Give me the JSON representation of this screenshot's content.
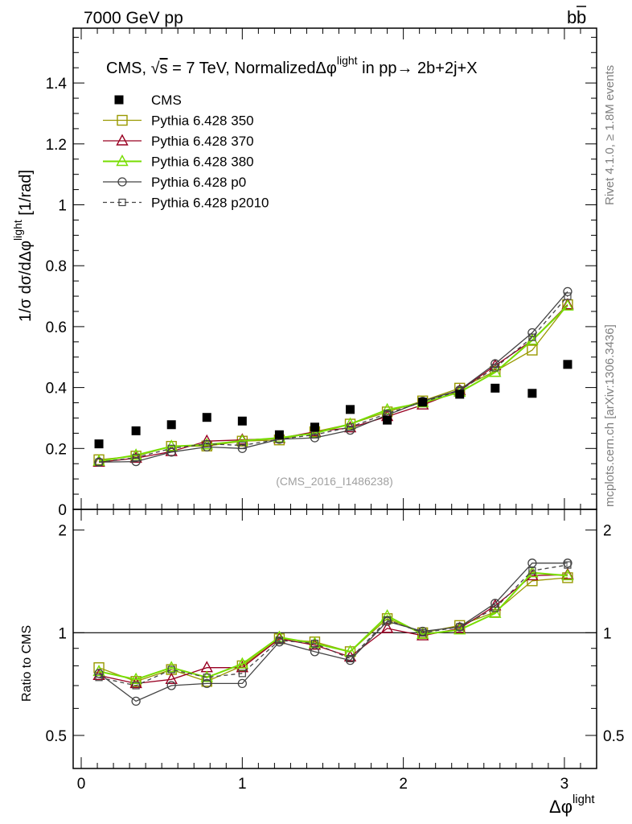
{
  "header": {
    "left": "7000 GeV pp",
    "right_b": "b",
    "right_bbar": "b"
  },
  "side_labels": {
    "rivet": "Rivet 4.1.0, ≥ 1.8M events",
    "mcplots": "mcplots.cern.ch [arXiv:1306.3436]"
  },
  "chart_data": [
    {
      "type": "scatter",
      "panel": "main",
      "title_parts": {
        "pre": "CMS, ",
        "sqrt": "√",
        "s": "s",
        "post": " = 7 TeV, Normalized",
        "dphi": "Δφ",
        "sup": "light",
        "tail": " in pp→  2b+2j+X"
      },
      "ylabel": {
        "pre": "1/σ dσ/dΔφ",
        "sup": "light",
        "post": " [1/rad]"
      },
      "watermark": "(CMS_2016_I1486238)",
      "xlim": [
        -0.05,
        3.2
      ],
      "ylim": [
        0,
        1.58
      ],
      "yticks": [
        0,
        0.2,
        0.4,
        0.6,
        0.8,
        1,
        1.2,
        1.4
      ],
      "yticklabels": [
        "0",
        "0.2",
        "0.4",
        "0.6",
        "0.8",
        "1",
        "1.2",
        "1.4"
      ],
      "x": [
        0.11,
        0.34,
        0.56,
        0.78,
        1.0,
        1.23,
        1.45,
        1.67,
        1.9,
        2.12,
        2.35,
        2.57,
        2.8,
        3.02
      ],
      "data": {
        "name": "CMS",
        "values": [
          0.215,
          0.258,
          0.278,
          0.302,
          0.29,
          0.245,
          0.27,
          0.328,
          0.293,
          0.352,
          0.378,
          0.398,
          0.381,
          0.476
        ]
      },
      "series": [
        {
          "name": "Pythia 6.428 350",
          "color": "#999900",
          "marker": "square-open",
          "dash": false,
          "values": [
            0.163,
            0.175,
            0.207,
            0.208,
            0.224,
            0.228,
            0.255,
            0.28,
            0.32,
            0.356,
            0.398,
            0.453,
            0.523,
            0.672
          ]
        },
        {
          "name": "Pythia 6.428 370",
          "color": "#990022",
          "marker": "triangle-open",
          "dash": false,
          "values": [
            0.155,
            0.168,
            0.19,
            0.224,
            0.228,
            0.233,
            0.255,
            0.268,
            0.305,
            0.343,
            0.39,
            0.472,
            0.555,
            0.672
          ]
        },
        {
          "name": "Pythia 6.428 380",
          "color": "#77dd00",
          "marker": "triangle-open",
          "dash": false,
          "values": [
            0.158,
            0.178,
            0.207,
            0.212,
            0.225,
            0.235,
            0.25,
            0.28,
            0.327,
            0.35,
            0.385,
            0.45,
            0.555,
            0.668
          ]
        },
        {
          "name": "Pythia 6.428 p0",
          "color": "#444444",
          "marker": "circle-open",
          "dash": false,
          "values": [
            0.155,
            0.157,
            0.188,
            0.205,
            0.2,
            0.23,
            0.235,
            0.26,
            0.31,
            0.355,
            0.392,
            0.478,
            0.58,
            0.715
          ]
        },
        {
          "name": "Pythia 6.428 p2010",
          "color": "#444444",
          "marker": "square-open-small",
          "dash": true,
          "values": [
            0.155,
            0.17,
            0.2,
            0.215,
            0.21,
            0.23,
            0.245,
            0.27,
            0.315,
            0.352,
            0.39,
            0.465,
            0.565,
            0.7
          ]
        }
      ]
    },
    {
      "type": "line",
      "panel": "ratio",
      "ylabel": "Ratio to CMS",
      "xlabel_pre": "Δφ",
      "xlabel_sup": "light",
      "xlim": [
        -0.05,
        3.2
      ],
      "ylim": [
        0.4,
        2.3
      ],
      "yticks": [
        0.5,
        1,
        2
      ],
      "yticklabels": [
        "0.5",
        "1",
        "2"
      ],
      "xticks": [
        0,
        1,
        2,
        3
      ],
      "xticklabels": [
        "0",
        "1",
        "2",
        "3"
      ],
      "reference": 1,
      "series": [
        {
          "name": "Pythia 6.428 350",
          "color": "#999900",
          "marker": "square-open",
          "dash": false,
          "values": [
            0.79,
            0.72,
            0.78,
            0.72,
            0.8,
            0.96,
            0.94,
            0.88,
            1.1,
            1.0,
            1.05,
            1.15,
            1.42,
            1.45
          ]
        },
        {
          "name": "Pythia 6.428 370",
          "color": "#990022",
          "marker": "triangle-open",
          "dash": false,
          "values": [
            0.75,
            0.71,
            0.73,
            0.79,
            0.79,
            0.96,
            0.92,
            0.85,
            1.03,
            0.98,
            1.03,
            1.2,
            1.47,
            1.48
          ]
        },
        {
          "name": "Pythia 6.428 380",
          "color": "#77dd00",
          "marker": "triangle-open",
          "dash": false,
          "values": [
            0.77,
            0.73,
            0.79,
            0.74,
            0.81,
            0.97,
            0.93,
            0.88,
            1.12,
            0.99,
            1.02,
            1.14,
            1.5,
            1.47
          ]
        },
        {
          "name": "Pythia 6.428 p0",
          "color": "#444444",
          "marker": "circle-open",
          "dash": false,
          "values": [
            0.76,
            0.63,
            0.7,
            0.71,
            0.71,
            0.94,
            0.88,
            0.83,
            1.08,
            1.01,
            1.04,
            1.22,
            1.6,
            1.6
          ]
        },
        {
          "name": "Pythia 6.428 p2010",
          "color": "#444444",
          "marker": "square-open-small",
          "dash": true,
          "values": [
            0.74,
            0.7,
            0.78,
            0.74,
            0.76,
            0.95,
            0.93,
            0.84,
            1.09,
            1.0,
            1.04,
            1.18,
            1.52,
            1.58
          ]
        }
      ]
    }
  ]
}
